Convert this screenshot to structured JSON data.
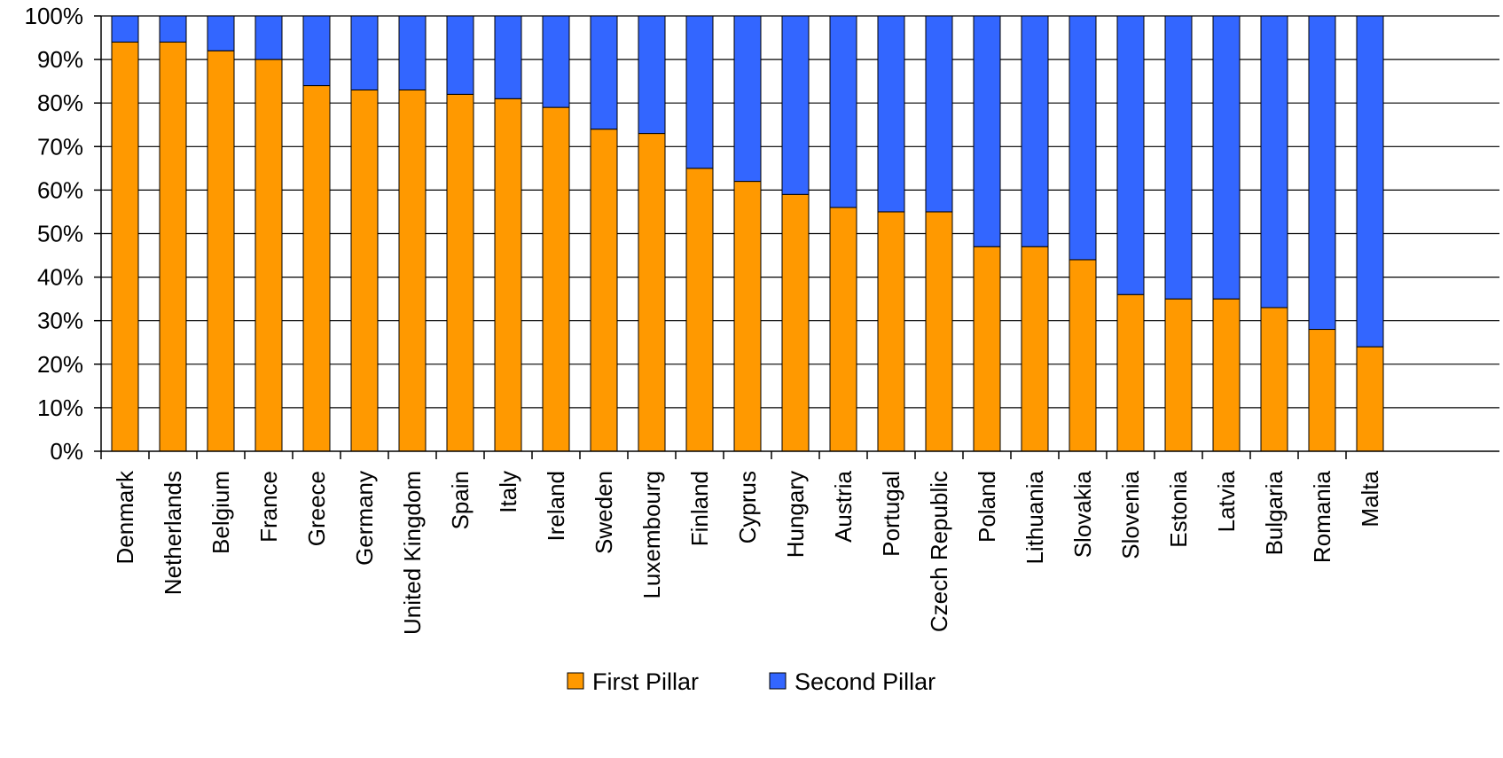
{
  "chart_data": {
    "type": "bar",
    "stacked": true,
    "percent_stacked": true,
    "title": "",
    "xlabel": "",
    "ylabel": "",
    "ylim": [
      0,
      100
    ],
    "y_ticks": [
      "0%",
      "10%",
      "20%",
      "30%",
      "40%",
      "50%",
      "60%",
      "70%",
      "80%",
      "90%",
      "100%"
    ],
    "grid": true,
    "legend_position": "bottom",
    "categories": [
      "Denmark",
      "Netherlands",
      "Belgium",
      "France",
      "Greece",
      "Germany",
      "United Kingdom",
      "Spain",
      "Italy",
      "Ireland",
      "Sweden",
      "Luxembourg",
      "Finland",
      "Cyprus",
      "Hungary",
      "Austria",
      "Portugal",
      "Czech Republic",
      "Poland",
      "Lithuania",
      "Slovakia",
      "Slovenia",
      "Estonia",
      "Latvia",
      "Bulgaria",
      "Romania",
      "Malta"
    ],
    "series": [
      {
        "name": "First Pillar",
        "color": "#FF9900",
        "values": [
          94,
          94,
          92,
          90,
          84,
          83,
          83,
          82,
          81,
          79,
          74,
          73,
          65,
          62,
          59,
          56,
          55,
          55,
          47,
          47,
          44,
          36,
          35,
          35,
          33,
          28,
          24
        ]
      },
      {
        "name": "Second Pillar",
        "color": "#3366FF",
        "values": [
          6,
          6,
          8,
          10,
          16,
          17,
          17,
          18,
          19,
          21,
          26,
          27,
          35,
          38,
          41,
          44,
          45,
          45,
          53,
          53,
          56,
          64,
          65,
          65,
          67,
          72,
          76
        ]
      }
    ]
  }
}
